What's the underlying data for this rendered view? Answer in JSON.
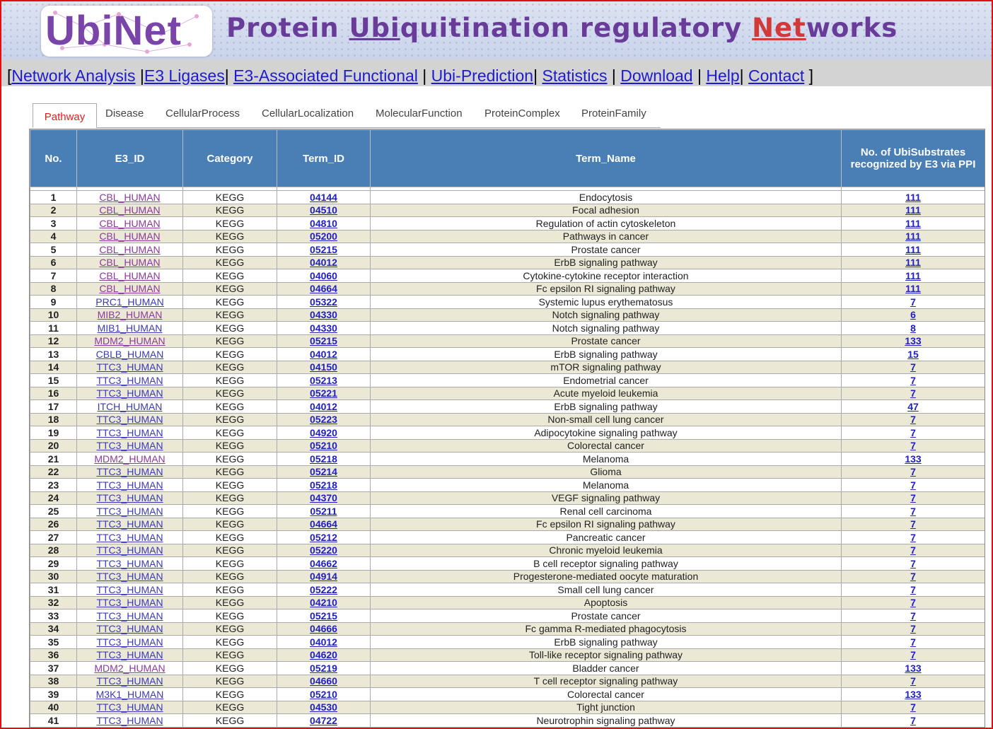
{
  "banner": {
    "logo_text": "UbiNet",
    "title_plain": "Protein ",
    "title_ubi": "Ubi",
    "title_mid": "quitination regulatory ",
    "title_net": "Net",
    "title_end": "works"
  },
  "nav": [
    {
      "label": "Network Analysis"
    },
    {
      "label": "E3 Ligases"
    },
    {
      "label": "E3-Associated Functional"
    },
    {
      "label": "Ubi-Prediction"
    },
    {
      "label": "Statistics"
    },
    {
      "label": "Download"
    },
    {
      "label": "Help"
    },
    {
      "label": "Contact"
    }
  ],
  "tabs": [
    "Pathway",
    "Disease",
    "CellularProcess",
    "CellularLocalization",
    "MolecularFunction",
    "ProteinComplex",
    "ProteinFamily"
  ],
  "columns": [
    "No.",
    "E3_ID",
    "Category",
    "Term_ID",
    "Term_Name",
    "No. of UbiSubstrates recognized by E3 via PPI"
  ],
  "rows": [
    [
      "1",
      "CBL_HUMAN",
      "KEGG",
      "04144",
      "Endocytosis",
      "111"
    ],
    [
      "2",
      "CBL_HUMAN",
      "KEGG",
      "04510",
      "Focal adhesion",
      "111"
    ],
    [
      "3",
      "CBL_HUMAN",
      "KEGG",
      "04810",
      "Regulation of actin cytoskeleton",
      "111"
    ],
    [
      "4",
      "CBL_HUMAN",
      "KEGG",
      "05200",
      "Pathways in cancer",
      "111"
    ],
    [
      "5",
      "CBL_HUMAN",
      "KEGG",
      "05215",
      "Prostate cancer",
      "111"
    ],
    [
      "6",
      "CBL_HUMAN",
      "KEGG",
      "04012",
      "ErbB signaling pathway",
      "111"
    ],
    [
      "7",
      "CBL_HUMAN",
      "KEGG",
      "04060",
      "Cytokine-cytokine receptor interaction",
      "111"
    ],
    [
      "8",
      "CBL_HUMAN",
      "KEGG",
      "04664",
      "Fc epsilon RI signaling pathway",
      "111"
    ],
    [
      "9",
      "PRC1_HUMAN",
      "KEGG",
      "05322",
      "Systemic lupus erythematosus",
      "7"
    ],
    [
      "10",
      "MIB2_HUMAN",
      "KEGG",
      "04330",
      "Notch signaling pathway",
      "6"
    ],
    [
      "11",
      "MIB1_HUMAN",
      "KEGG",
      "04330",
      "Notch signaling pathway",
      "8"
    ],
    [
      "12",
      "MDM2_HUMAN",
      "KEGG",
      "05215",
      "Prostate cancer",
      "133"
    ],
    [
      "13",
      "CBLB_HUMAN",
      "KEGG",
      "04012",
      "ErbB signaling pathway",
      "15"
    ],
    [
      "14",
      "TTC3_HUMAN",
      "KEGG",
      "04150",
      "mTOR signaling pathway",
      "7"
    ],
    [
      "15",
      "TTC3_HUMAN",
      "KEGG",
      "05213",
      "Endometrial cancer",
      "7"
    ],
    [
      "16",
      "TTC3_HUMAN",
      "KEGG",
      "05221",
      "Acute myeloid leukemia",
      "7"
    ],
    [
      "17",
      "ITCH_HUMAN",
      "KEGG",
      "04012",
      "ErbB signaling pathway",
      "47"
    ],
    [
      "18",
      "TTC3_HUMAN",
      "KEGG",
      "05223",
      "Non-small cell lung cancer",
      "7"
    ],
    [
      "19",
      "TTC3_HUMAN",
      "KEGG",
      "04920",
      "Adipocytokine signaling pathway",
      "7"
    ],
    [
      "20",
      "TTC3_HUMAN",
      "KEGG",
      "05210",
      "Colorectal cancer",
      "7"
    ],
    [
      "21",
      "MDM2_HUMAN",
      "KEGG",
      "05218",
      "Melanoma",
      "133"
    ],
    [
      "22",
      "TTC3_HUMAN",
      "KEGG",
      "05214",
      "Glioma",
      "7"
    ],
    [
      "23",
      "TTC3_HUMAN",
      "KEGG",
      "05218",
      "Melanoma",
      "7"
    ],
    [
      "24",
      "TTC3_HUMAN",
      "KEGG",
      "04370",
      "VEGF signaling pathway",
      "7"
    ],
    [
      "25",
      "TTC3_HUMAN",
      "KEGG",
      "05211",
      "Renal cell carcinoma",
      "7"
    ],
    [
      "26",
      "TTC3_HUMAN",
      "KEGG",
      "04664",
      "Fc epsilon RI signaling pathway",
      "7"
    ],
    [
      "27",
      "TTC3_HUMAN",
      "KEGG",
      "05212",
      "Pancreatic cancer",
      "7"
    ],
    [
      "28",
      "TTC3_HUMAN",
      "KEGG",
      "05220",
      "Chronic myeloid leukemia",
      "7"
    ],
    [
      "29",
      "TTC3_HUMAN",
      "KEGG",
      "04662",
      "B cell receptor signaling pathway",
      "7"
    ],
    [
      "30",
      "TTC3_HUMAN",
      "KEGG",
      "04914",
      "Progesterone-mediated oocyte maturation",
      "7"
    ],
    [
      "31",
      "TTC3_HUMAN",
      "KEGG",
      "05222",
      "Small cell lung cancer",
      "7"
    ],
    [
      "32",
      "TTC3_HUMAN",
      "KEGG",
      "04210",
      "Apoptosis",
      "7"
    ],
    [
      "33",
      "TTC3_HUMAN",
      "KEGG",
      "05215",
      "Prostate cancer",
      "7"
    ],
    [
      "34",
      "TTC3_HUMAN",
      "KEGG",
      "04666",
      "Fc gamma R-mediated phagocytosis",
      "7"
    ],
    [
      "35",
      "TTC3_HUMAN",
      "KEGG",
      "04012",
      "ErbB signaling pathway",
      "7"
    ],
    [
      "36",
      "TTC3_HUMAN",
      "KEGG",
      "04620",
      "Toll-like receptor signaling pathway",
      "7"
    ],
    [
      "37",
      "MDM2_HUMAN",
      "KEGG",
      "05219",
      "Bladder cancer",
      "133"
    ],
    [
      "38",
      "TTC3_HUMAN",
      "KEGG",
      "04660",
      "T cell receptor signaling pathway",
      "7"
    ],
    [
      "39",
      "M3K1_HUMAN",
      "KEGG",
      "05210",
      "Colorectal cancer",
      "133"
    ],
    [
      "40",
      "TTC3_HUMAN",
      "KEGG",
      "04530",
      "Tight junction",
      "7"
    ],
    [
      "41",
      "TTC3_HUMAN",
      "KEGG",
      "04722",
      "Neurotrophin signaling pathway",
      "7"
    ]
  ],
  "colors": {
    "header_bg": "#4a7fb5",
    "row_alt": "#ebe9d6",
    "nav_link": "#1d1bd0",
    "active_tab": "#e02020",
    "frame": "#e01010"
  }
}
